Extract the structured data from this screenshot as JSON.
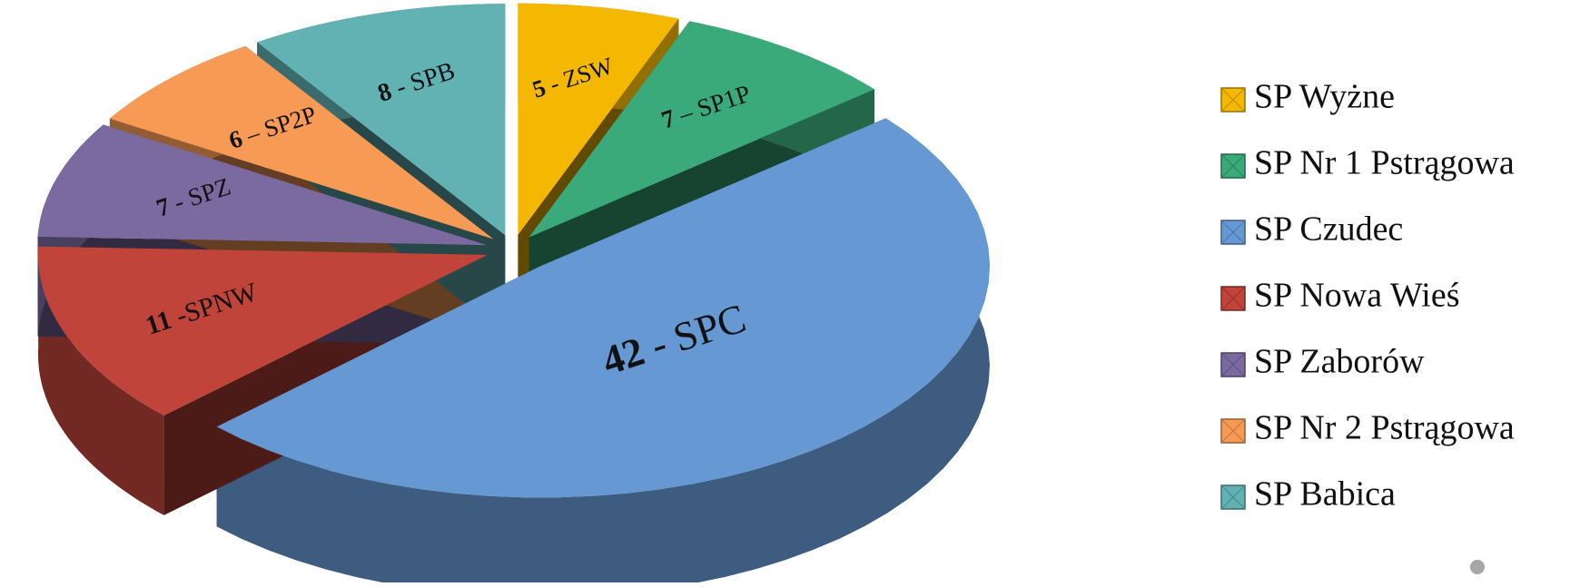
{
  "chart_data": {
    "type": "pie3d",
    "categories": [
      "SP Wyżne",
      "SP Nr 1 Pstrągowa",
      "SP Czudec",
      "SP Nowa Wieś",
      "SP Zaborów",
      "SP Nr 2 Pstrągowa",
      "SP Babica"
    ],
    "values": [
      5,
      7,
      42,
      11,
      7,
      6,
      8
    ],
    "value_labels": [
      "5 - ZSW",
      "7 – SP1P",
      "42 - SPC",
      "11 -SPNW",
      "7 - SPZ",
      "6 – SP2P",
      "8 - SPB"
    ],
    "colors": [
      "#f5b800",
      "#3aaa7a",
      "#6699d4",
      "#c0443a",
      "#7a6aa0",
      "#f79a55",
      "#62b2b4"
    ],
    "legend": "right"
  }
}
